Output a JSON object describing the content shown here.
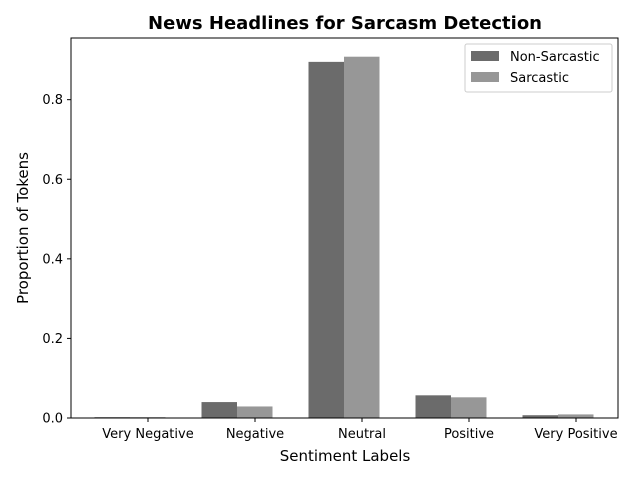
{
  "chart_data": {
    "type": "bar",
    "title": "News Headlines for Sarcasm Detection",
    "xlabel": "Sentiment Labels",
    "ylabel": "Proportion of Tokens",
    "categories": [
      "Very Negative",
      "Negative",
      "Neutral",
      "Positive",
      "Very Positive"
    ],
    "series": [
      {
        "name": "Non-Sarcastic",
        "color": "#6b6b6b",
        "values": [
          0.002,
          0.04,
          0.895,
          0.057,
          0.007
        ]
      },
      {
        "name": "Sarcastic",
        "color": "#979797",
        "values": [
          0.002,
          0.029,
          0.908,
          0.052,
          0.009
        ]
      }
    ],
    "ylim": [
      0,
      0.955
    ],
    "yticks": [
      0.0,
      0.2,
      0.4,
      0.6,
      0.8
    ],
    "ytick_labels": [
      "0.0",
      "0.2",
      "0.4",
      "0.6",
      "0.8"
    ],
    "grid": false,
    "legend_position": "top-right"
  }
}
